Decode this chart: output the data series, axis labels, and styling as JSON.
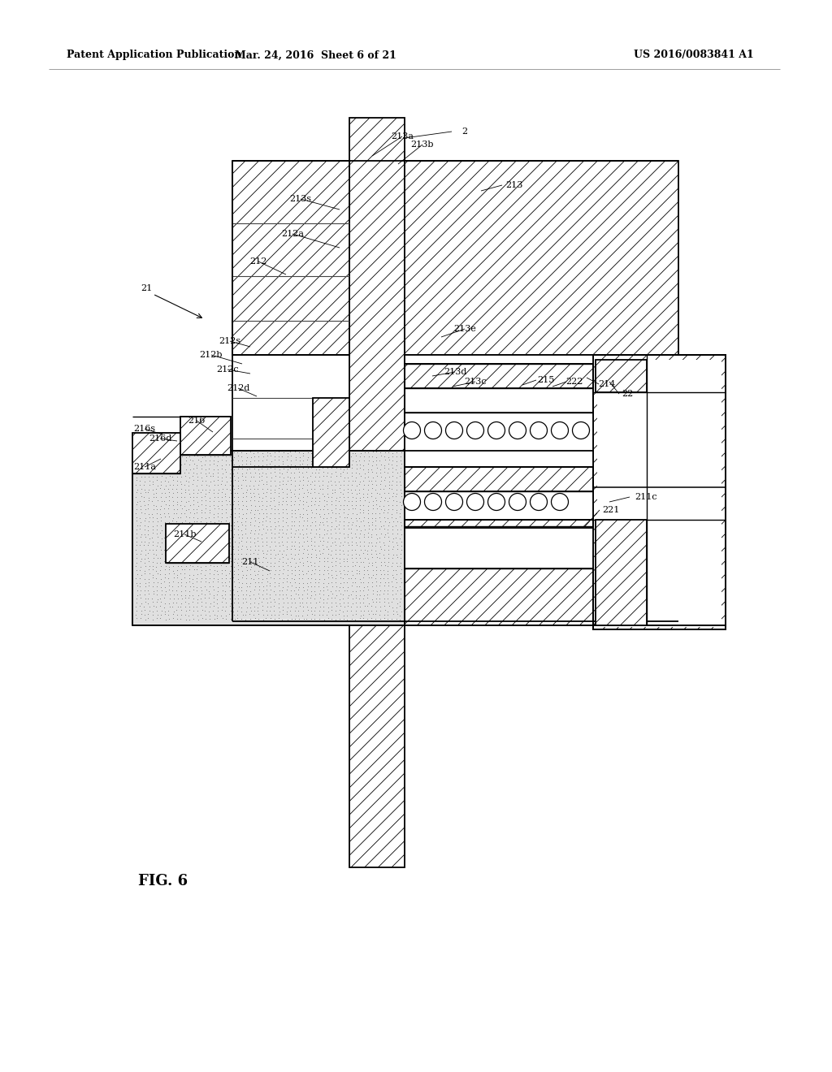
{
  "header_left": "Patent Application Publication",
  "header_mid": "Mar. 24, 2016  Sheet 6 of 21",
  "header_right": "US 2016/0083841 A1",
  "figure_label": "FIG. 6",
  "bg_color": "#ffffff",
  "line_color": "#000000",
  "fig_width": 10.24,
  "fig_height": 13.2,
  "dpi": 100
}
